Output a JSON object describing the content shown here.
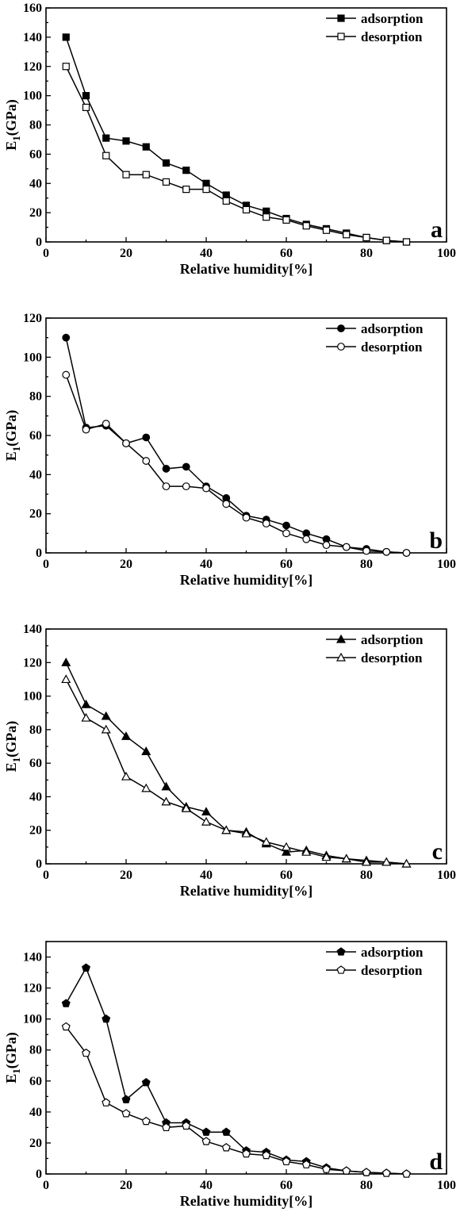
{
  "chart_data": [
    {
      "type": "line",
      "panel_label": "a",
      "xlabel": "Relative humidity[%]",
      "ylabel": "E1(GPa)",
      "xlim": [
        0,
        100
      ],
      "ylim": [
        0,
        160
      ],
      "xticks": [
        0,
        20,
        40,
        60,
        80,
        100
      ],
      "yticks": [
        0,
        20,
        40,
        60,
        80,
        100,
        120,
        140,
        160
      ],
      "legend_position": "top-right",
      "x": [
        5,
        10,
        15,
        20,
        25,
        30,
        35,
        40,
        45,
        50,
        55,
        60,
        65,
        70,
        75,
        80,
        85,
        90
      ],
      "series": [
        {
          "name": "adsorption",
          "marker": "square",
          "filled": true,
          "values": [
            140,
            100,
            71,
            69,
            65,
            54,
            49,
            40,
            32,
            25,
            21,
            16,
            12,
            9,
            6,
            3,
            1,
            0
          ]
        },
        {
          "name": "desorption",
          "marker": "square",
          "filled": false,
          "values": [
            120,
            92,
            59,
            46,
            46,
            41,
            36,
            36,
            28,
            22,
            17,
            15,
            11,
            8,
            5,
            3,
            1,
            0
          ]
        }
      ]
    },
    {
      "type": "line",
      "panel_label": "b",
      "xlabel": "Relative humidity[%]",
      "ylabel": "E1(GPa)",
      "xlim": [
        0,
        100
      ],
      "ylim": [
        0,
        120
      ],
      "xticks": [
        0,
        20,
        40,
        60,
        80,
        100
      ],
      "yticks": [
        0,
        20,
        40,
        60,
        80,
        100,
        120
      ],
      "legend_position": "top-right",
      "x": [
        5,
        10,
        15,
        20,
        25,
        30,
        35,
        40,
        45,
        50,
        55,
        60,
        65,
        70,
        75,
        80,
        85,
        90
      ],
      "series": [
        {
          "name": "adsorption",
          "marker": "circle",
          "filled": true,
          "values": [
            110,
            64,
            65,
            56,
            59,
            43,
            44,
            34,
            28,
            19,
            17,
            14,
            10,
            7,
            3,
            2,
            0.5,
            0
          ]
        },
        {
          "name": "desorption",
          "marker": "circle",
          "filled": false,
          "values": [
            91,
            63,
            66,
            56,
            47,
            34,
            34,
            33,
            25,
            18,
            15,
            10,
            7,
            4,
            3,
            1,
            0.5,
            0
          ]
        }
      ]
    },
    {
      "type": "line",
      "panel_label": "c",
      "xlabel": "Relative humidity[%]",
      "ylabel": "E1(GPa)",
      "xlim": [
        0,
        100
      ],
      "ylim": [
        0,
        140
      ],
      "xticks": [
        0,
        20,
        40,
        60,
        80,
        100
      ],
      "yticks": [
        0,
        20,
        40,
        60,
        80,
        100,
        120,
        140
      ],
      "legend_position": "top-right",
      "x": [
        5,
        10,
        15,
        20,
        25,
        30,
        35,
        40,
        45,
        50,
        55,
        60,
        65,
        70,
        75,
        80,
        85,
        90
      ],
      "series": [
        {
          "name": "adsorption",
          "marker": "triangle",
          "filled": true,
          "values": [
            120,
            95,
            88,
            76,
            67,
            46,
            34,
            31,
            20,
            19,
            12,
            7,
            8,
            5,
            3,
            2,
            1,
            0
          ]
        },
        {
          "name": "desorption",
          "marker": "triangle",
          "filled": false,
          "values": [
            110,
            87,
            80,
            52,
            45,
            37,
            33,
            25,
            20,
            18,
            13,
            10,
            7,
            4,
            3,
            1,
            1,
            0
          ]
        }
      ]
    },
    {
      "type": "line",
      "panel_label": "d",
      "xlabel": "Relative humidity[%]",
      "ylabel": "E1(GPa)",
      "xlim": [
        0,
        100
      ],
      "ylim": [
        0,
        150
      ],
      "xticks": [
        0,
        20,
        40,
        60,
        80,
        100
      ],
      "yticks": [
        0,
        20,
        40,
        60,
        80,
        100,
        120,
        140
      ],
      "legend_position": "top-right",
      "x": [
        5,
        10,
        15,
        20,
        25,
        30,
        35,
        40,
        45,
        50,
        55,
        60,
        65,
        70,
        75,
        80,
        85,
        90
      ],
      "series": [
        {
          "name": "adsorption",
          "marker": "pentagon",
          "filled": true,
          "values": [
            110,
            133,
            100,
            48,
            59,
            33,
            33,
            27,
            27,
            15,
            14,
            9,
            8,
            4,
            2,
            1,
            0.5,
            0
          ]
        },
        {
          "name": "desorption",
          "marker": "pentagon",
          "filled": false,
          "values": [
            95,
            78,
            46,
            39,
            34,
            30,
            31,
            21,
            17,
            13,
            12,
            8,
            6,
            3,
            2,
            1,
            0.5,
            0
          ]
        }
      ]
    }
  ]
}
